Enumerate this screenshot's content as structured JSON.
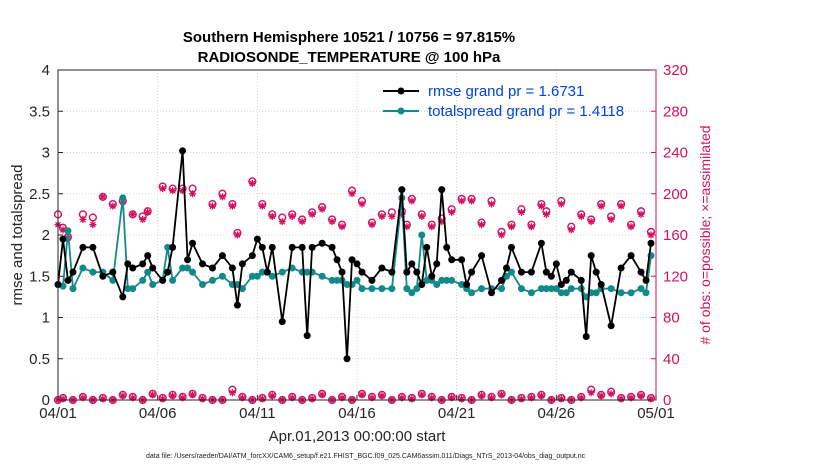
{
  "chart_data": {
    "type": "line",
    "title": "Southern Hemisphere 10521 / 10756 = 97.815%",
    "subtitle": "RADIOSONDE_TEMPERATURE @ 100 hPa",
    "xlabel": "Apr.01,2013 00:00:00 start",
    "ylabel_left": "rmse and totalspread",
    "ylabel_right": "# of obs: o=possible; ×=assimilated",
    "footer": "data file: /Users/raeder/DAI/ATM_forcXX/CAM6_setup/f.e21.FHIST_BGC.f09_025.CAM6assim.011/Diags_NTrS_2013-04/obs_diag_output.nc",
    "xlim": [
      0,
      30
    ],
    "ylim_left": [
      0,
      4
    ],
    "ylim_right": [
      0,
      320
    ],
    "x_ticks": [
      0,
      5,
      10,
      15,
      20,
      25,
      30
    ],
    "x_tick_labels": [
      "04/01",
      "04/06",
      "04/11",
      "04/16",
      "04/21",
      "04/26",
      "05/01"
    ],
    "y_ticks_left": [
      0,
      0.5,
      1,
      1.5,
      2,
      2.5,
      3,
      3.5,
      4
    ],
    "y_tick_labels_left": [
      "0",
      "0.5",
      "1",
      "1.5",
      "2",
      "2.5",
      "3",
      "3.5",
      "4"
    ],
    "y_ticks_right": [
      0,
      40,
      80,
      120,
      160,
      200,
      240,
      280,
      320
    ],
    "y_tick_labels_right": [
      "0",
      "40",
      "80",
      "120",
      "160",
      "200",
      "240",
      "280",
      "320"
    ],
    "colors": {
      "rmse": "#000000",
      "spread": "#138a8a",
      "counts": "#d3125f",
      "legend_text": "#0044dd",
      "axis": "#262626"
    },
    "series": [
      {
        "name": "rmse grand pr = 1.6731",
        "legend": "rmse grand pr = 1.6731",
        "x": [
          0.0,
          0.25,
          0.5,
          0.75,
          1.25,
          1.75,
          2.25,
          2.75,
          3.25,
          3.5,
          3.75,
          4.25,
          4.5,
          4.75,
          5.25,
          5.5,
          5.75,
          6.25,
          6.5,
          6.75,
          7.25,
          7.75,
          8.25,
          8.75,
          9.0,
          9.25,
          9.75,
          10.0,
          10.25,
          10.5,
          10.75,
          11.25,
          11.75,
          12.25,
          12.5,
          12.75,
          13.25,
          13.75,
          14.0,
          14.25,
          14.5,
          14.75,
          15.0,
          15.25,
          15.75,
          16.25,
          16.75,
          17.25,
          17.5,
          17.75,
          18.0,
          18.25,
          18.5,
          18.75,
          19.0,
          19.25,
          19.5,
          19.75,
          20.25,
          20.5,
          20.75,
          21.25,
          21.75,
          22.25,
          22.5,
          22.75,
          23.25,
          23.75,
          24.25,
          24.5,
          24.75,
          25.0,
          25.25,
          25.5,
          25.75,
          26.25,
          26.5,
          26.75,
          27.0,
          27.25,
          27.75,
          28.25,
          28.75,
          29.25,
          29.5,
          29.75
        ],
        "values": [
          1.4,
          1.95,
          1.45,
          1.55,
          1.85,
          1.85,
          1.5,
          1.55,
          1.25,
          1.65,
          1.6,
          1.65,
          1.75,
          1.6,
          1.45,
          1.55,
          1.85,
          3.02,
          1.7,
          1.9,
          1.65,
          1.6,
          1.75,
          1.6,
          1.15,
          1.65,
          1.75,
          1.95,
          1.85,
          1.55,
          1.85,
          0.95,
          1.85,
          1.85,
          0.78,
          1.85,
          1.9,
          1.85,
          1.7,
          1.55,
          0.5,
          1.7,
          1.65,
          1.55,
          1.45,
          1.6,
          1.55,
          2.55,
          1.55,
          1.65,
          1.55,
          1.4,
          1.85,
          1.5,
          1.65,
          2.55,
          1.85,
          1.7,
          1.7,
          1.4,
          1.55,
          1.75,
          1.3,
          1.45,
          1.6,
          1.85,
          1.55,
          1.55,
          1.9,
          1.55,
          1.5,
          1.65,
          1.4,
          1.45,
          1.55,
          1.45,
          0.77,
          1.75,
          1.55,
          1.4,
          0.9,
          1.6,
          1.75,
          1.55,
          1.45,
          1.9
        ],
        "grand": 1.6731
      },
      {
        "name": "totalspread grand pr = 1.4118",
        "legend": "totalspread grand pr = 1.4118",
        "x": [
          0.0,
          0.25,
          0.5,
          0.75,
          1.25,
          1.75,
          2.25,
          2.75,
          3.25,
          3.5,
          3.75,
          4.25,
          4.5,
          4.75,
          5.25,
          5.5,
          5.75,
          6.25,
          6.5,
          6.75,
          7.25,
          7.75,
          8.25,
          8.75,
          9.0,
          9.25,
          9.75,
          10.0,
          10.25,
          10.5,
          10.75,
          11.25,
          11.75,
          12.25,
          12.5,
          12.75,
          13.25,
          13.75,
          14.0,
          14.25,
          14.5,
          14.75,
          15.0,
          15.25,
          15.75,
          16.25,
          16.75,
          17.25,
          17.5,
          17.75,
          18.0,
          18.25,
          18.5,
          18.75,
          19.0,
          19.25,
          19.5,
          19.75,
          20.25,
          20.5,
          20.75,
          21.25,
          21.75,
          22.25,
          22.5,
          22.75,
          23.25,
          23.75,
          24.25,
          24.5,
          24.75,
          25.0,
          25.25,
          25.5,
          25.75,
          26.25,
          26.5,
          26.75,
          27.0,
          27.25,
          27.75,
          28.25,
          28.75,
          29.25,
          29.5,
          29.75
        ],
        "values": [
          1.4,
          1.38,
          2.05,
          1.35,
          1.6,
          1.55,
          1.55,
          1.45,
          2.45,
          1.35,
          1.35,
          1.45,
          1.55,
          1.4,
          1.45,
          1.85,
          1.45,
          1.6,
          1.6,
          1.55,
          1.4,
          1.45,
          1.5,
          1.4,
          1.4,
          1.35,
          1.5,
          1.5,
          1.55,
          1.55,
          1.5,
          1.55,
          1.6,
          1.55,
          1.55,
          1.55,
          1.5,
          1.45,
          1.45,
          1.45,
          1.4,
          1.4,
          1.45,
          1.35,
          1.35,
          1.35,
          1.35,
          2.45,
          1.35,
          1.3,
          1.35,
          2.0,
          1.45,
          1.45,
          1.4,
          1.45,
          1.45,
          1.45,
          1.4,
          1.35,
          1.3,
          1.35,
          1.35,
          1.35,
          1.5,
          1.55,
          1.35,
          1.3,
          1.35,
          1.35,
          1.35,
          1.35,
          1.3,
          1.3,
          1.35,
          1.35,
          1.25,
          1.3,
          1.3,
          1.35,
          1.35,
          1.3,
          1.3,
          1.35,
          1.3,
          1.75
        ],
        "grand": 1.4118
      },
      {
        "name": "obs possible",
        "marker": "o",
        "x": [
          0.0,
          0.25,
          0.5,
          1.25,
          1.75,
          2.25,
          2.75,
          3.25,
          3.75,
          4.25,
          4.5,
          5.25,
          5.75,
          6.25,
          6.75,
          7.75,
          8.25,
          8.75,
          9.0,
          9.75,
          10.25,
          10.75,
          11.25,
          11.75,
          12.25,
          12.75,
          13.25,
          13.75,
          14.25,
          14.75,
          15.25,
          15.75,
          16.25,
          16.75,
          17.25,
          17.5,
          17.75,
          18.25,
          18.75,
          19.25,
          19.75,
          20.25,
          20.75,
          21.25,
          21.75,
          22.25,
          22.75,
          23.25,
          23.75,
          24.25,
          24.5,
          25.25,
          25.75,
          26.25,
          26.75,
          27.25,
          27.75,
          28.25,
          28.75,
          29.25,
          29.75
        ],
        "values": [
          180,
          167,
          158,
          180,
          177,
          197,
          190,
          193,
          180,
          178,
          183,
          207,
          205,
          205,
          205,
          190,
          200,
          190,
          162,
          212,
          190,
          180,
          177,
          180,
          175,
          182,
          187,
          175,
          170,
          203,
          193,
          172,
          180,
          182,
          183,
          170,
          195,
          180,
          170,
          176,
          185,
          195,
          195,
          172,
          193,
          163,
          170,
          185,
          170,
          190,
          183,
          193,
          168,
          180,
          175,
          190,
          178,
          190,
          170,
          183,
          163
        ]
      },
      {
        "name": "obs assimilated",
        "marker": "x",
        "x": [
          0.0,
          0.25,
          0.5,
          1.25,
          1.75,
          2.25,
          2.75,
          3.25,
          3.75,
          4.25,
          4.5,
          5.25,
          5.75,
          6.25,
          6.75,
          7.75,
          8.25,
          8.75,
          9.0,
          9.75,
          10.25,
          10.75,
          11.25,
          11.75,
          12.25,
          12.75,
          13.25,
          13.75,
          14.25,
          14.75,
          15.25,
          15.75,
          16.25,
          16.75,
          17.25,
          17.5,
          17.75,
          18.25,
          18.75,
          19.25,
          19.75,
          20.25,
          20.75,
          21.25,
          21.75,
          22.25,
          22.75,
          23.25,
          23.75,
          24.25,
          24.5,
          25.25,
          25.75,
          26.25,
          26.75,
          27.25,
          27.75,
          28.25,
          28.75,
          29.25,
          29.75
        ],
        "values": [
          170,
          165,
          157,
          175,
          170,
          197,
          188,
          192,
          180,
          175,
          182,
          205,
          203,
          203,
          200,
          188,
          197,
          188,
          160,
          210,
          188,
          178,
          173,
          178,
          173,
          180,
          185,
          173,
          168,
          200,
          190,
          170,
          178,
          178,
          180,
          168,
          193,
          178,
          168,
          173,
          182,
          193,
          193,
          170,
          190,
          160,
          168,
          182,
          168,
          188,
          180,
          190,
          165,
          178,
          173,
          188,
          175,
          188,
          168,
          180,
          160
        ]
      },
      {
        "name": "obs possible (near zero)",
        "marker": "o",
        "x": [
          0.0,
          0.25,
          0.75,
          1.25,
          1.75,
          2.25,
          2.75,
          3.25,
          3.75,
          4.25,
          4.75,
          5.25,
          5.75,
          6.25,
          6.75,
          7.25,
          7.75,
          8.25,
          8.75,
          9.25,
          9.75,
          10.25,
          10.75,
          11.25,
          11.75,
          12.25,
          12.75,
          13.25,
          13.75,
          14.25,
          14.75,
          15.25,
          15.75,
          16.25,
          16.75,
          17.25,
          17.75,
          18.25,
          18.75,
          19.25,
          19.75,
          20.25,
          20.75,
          21.25,
          21.75,
          22.25,
          22.75,
          23.25,
          23.75,
          24.25,
          24.75,
          25.25,
          25.75,
          26.25,
          26.75,
          27.25,
          27.75,
          28.25,
          28.75,
          29.25,
          29.75
        ],
        "values": [
          0,
          2,
          0,
          3,
          0,
          2,
          0,
          5,
          3,
          0,
          6,
          2,
          5,
          3,
          6,
          2,
          0,
          0,
          10,
          3,
          0,
          2,
          5,
          0,
          3,
          0,
          2,
          6,
          0,
          3,
          0,
          6,
          3,
          5,
          0,
          3,
          2,
          6,
          3,
          0,
          3,
          2,
          0,
          5,
          3,
          6,
          0,
          2,
          3,
          5,
          0,
          2,
          0,
          3,
          10,
          5,
          8,
          2,
          3,
          5,
          2
        ]
      },
      {
        "name": "obs assimilated (near zero)",
        "marker": "x",
        "x": [
          0.0,
          0.25,
          0.75,
          1.25,
          1.75,
          2.25,
          2.75,
          3.25,
          3.75,
          4.25,
          4.75,
          5.25,
          5.75,
          6.25,
          6.75,
          7.25,
          7.75,
          8.25,
          8.75,
          9.25,
          9.75,
          10.25,
          10.75,
          11.25,
          11.75,
          12.25,
          12.75,
          13.25,
          13.75,
          14.25,
          14.75,
          15.25,
          15.75,
          16.25,
          16.75,
          17.25,
          17.75,
          18.25,
          18.75,
          19.25,
          19.75,
          20.25,
          20.75,
          21.25,
          21.75,
          22.25,
          22.75,
          23.25,
          23.75,
          24.25,
          24.75,
          25.25,
          25.75,
          26.25,
          26.75,
          27.25,
          27.75,
          28.25,
          28.75,
          29.25,
          29.75
        ],
        "values": [
          0,
          1,
          0,
          2,
          0,
          1,
          0,
          4,
          2,
          0,
          5,
          1,
          4,
          2,
          5,
          1,
          0,
          0,
          7,
          2,
          0,
          1,
          4,
          0,
          2,
          0,
          1,
          5,
          0,
          2,
          0,
          5,
          2,
          4,
          0,
          2,
          1,
          5,
          2,
          0,
          2,
          1,
          0,
          4,
          2,
          5,
          0,
          1,
          2,
          4,
          0,
          1,
          0,
          2,
          7,
          4,
          6,
          1,
          2,
          4,
          1
        ]
      }
    ]
  }
}
